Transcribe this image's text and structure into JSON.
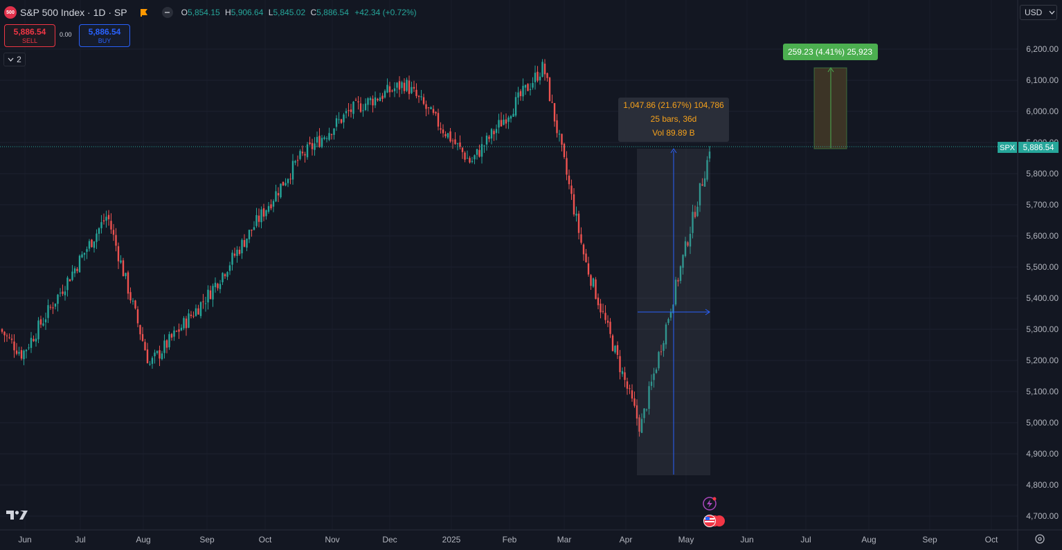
{
  "header": {
    "badge": "500",
    "symbol": "S&P 500 Index · 1D · SP",
    "open_label": "O",
    "open": "5,854.15",
    "high_label": "H",
    "high": "5,906.64",
    "low_label": "L",
    "low": "5,845.02",
    "close_label": "C",
    "close": "5,886.54",
    "change": "+42.34 (+0.72%)"
  },
  "trade": {
    "sell_price": "5,886.54",
    "sell_label": "SELL",
    "spread": "0.00",
    "buy_price": "5,886.54",
    "buy_label": "BUY"
  },
  "indicators_toggle": "2",
  "currency": "USD",
  "price_axis": {
    "ticks": [
      "6,200.00",
      "6,100.00",
      "6,000.00",
      "5,900.00",
      "5,800.00",
      "5,700.00",
      "5,600.00",
      "5,500.00",
      "5,400.00",
      "5,300.00",
      "5,200.00",
      "5,100.00",
      "5,000.00",
      "4,900.00",
      "4,800.00",
      "4,700.00"
    ],
    "tick_values": [
      6200,
      6100,
      6000,
      5900,
      5800,
      5700,
      5600,
      5500,
      5400,
      5300,
      5200,
      5100,
      5000,
      4900,
      4800,
      4700
    ],
    "last_symbol": "SPX",
    "last_price": "5,886.54",
    "last_value": 5886.54
  },
  "time_axis": {
    "labels": [
      "Jun",
      "Jul",
      "Aug",
      "Sep",
      "Oct",
      "Nov",
      "Dec",
      "2025",
      "Feb",
      "Mar",
      "Apr",
      "May",
      "Jun",
      "Jul",
      "Aug",
      "Sep",
      "Oct"
    ]
  },
  "measure_tool": {
    "line1": "1,047.86 (21.67%) 104,786",
    "line2": "25 bars, 36d",
    "line3": "Vol 89.89 B"
  },
  "target_label": "259.23 (4.41%) 25,923",
  "colors": {
    "up": "#26a69a",
    "down": "#ef5350",
    "bg": "#131722",
    "grid": "#1e222d",
    "measure_text": "#f7a21b",
    "measure_line": "#2962ff",
    "target": "#4caf50"
  },
  "chart_data": {
    "type": "candlestick",
    "title": "S&P 500 Index · 1D · SP",
    "y_range": [
      4660,
      6260
    ],
    "ohlc_last": {
      "open": 5854.15,
      "high": 5906.64,
      "low": 5845.02,
      "close": 5886.54
    },
    "swings": [
      {
        "date": "2024-05",
        "close": 5300
      },
      {
        "date": "2024-05-31",
        "close": 5220
      },
      {
        "date": "2024-07-16",
        "close": 5667
      },
      {
        "date": "2024-08-05",
        "close": 5186
      },
      {
        "date": "2024-09-06",
        "close": 5408
      },
      {
        "date": "2024-10-17",
        "close": 5842
      },
      {
        "date": "2024-11-11",
        "close": 6001
      },
      {
        "date": "2024-12-06",
        "close": 6090
      },
      {
        "date": "2025-01-13",
        "close": 5836
      },
      {
        "date": "2025-02-19",
        "close": 6144
      },
      {
        "date": "2025-03-13",
        "close": 5521
      },
      {
        "date": "2025-04-08",
        "close": 4982
      },
      {
        "date": "2025-05-12",
        "close": 5844
      },
      {
        "date": "2025-05-13",
        "close": 5886.54
      }
    ]
  }
}
